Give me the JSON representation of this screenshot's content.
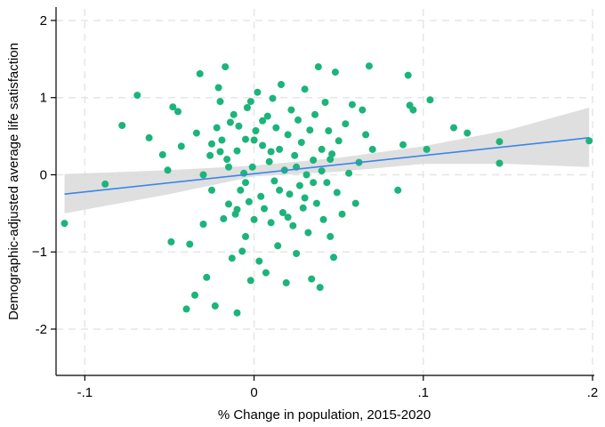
{
  "chart_data": {
    "type": "scatter",
    "xlabel": "% Change in population, 2015-2020",
    "ylabel": "Demographic-adjusted average life satisfaction",
    "xlim": [
      -0.117,
      0.2
    ],
    "ylim": [
      -2.6,
      2.15
    ],
    "xticks": [
      -0.1,
      0,
      0.1,
      0.2
    ],
    "xtick_labels": [
      "-.1",
      "0",
      ".1",
      ".2"
    ],
    "yticks": [
      -2,
      -1,
      0,
      1,
      2
    ],
    "ytick_labels": [
      "-2",
      "−1",
      "0",
      "1",
      "2"
    ],
    "grid": true,
    "colors": {
      "points": "#1bb47a",
      "fit_line": "#3a86e8",
      "ci_band": "#d9d9d9",
      "grid": "#e6e6e6"
    },
    "fit_line": {
      "x": [
        -0.112,
        0.198
      ],
      "y": [
        -0.25,
        0.48
      ]
    },
    "ci_band": {
      "x": [
        -0.112,
        -0.05,
        0.0,
        0.05,
        0.1,
        0.15,
        0.198
      ],
      "upper": [
        0.01,
        0.06,
        0.12,
        0.22,
        0.37,
        0.58,
        0.87
      ],
      "lower": [
        -0.5,
        -0.25,
        -0.02,
        0.04,
        0.14,
        0.14,
        0.1
      ]
    },
    "points": [
      [
        -0.112,
        -0.63
      ],
      [
        -0.088,
        -0.12
      ],
      [
        -0.069,
        1.03
      ],
      [
        -0.078,
        0.64
      ],
      [
        -0.062,
        0.48
      ],
      [
        -0.054,
        0.26
      ],
      [
        -0.051,
        0.06
      ],
      [
        -0.049,
        -0.87
      ],
      [
        -0.048,
        0.88
      ],
      [
        -0.045,
        0.82
      ],
      [
        -0.043,
        0.37
      ],
      [
        -0.04,
        -1.74
      ],
      [
        -0.038,
        -0.9
      ],
      [
        -0.035,
        -1.56
      ],
      [
        -0.034,
        0.54
      ],
      [
        -0.032,
        1.31
      ],
      [
        -0.03,
        -0.64
      ],
      [
        -0.028,
        -1.33
      ],
      [
        -0.026,
        0.25
      ],
      [
        -0.025,
        -0.2
      ],
      [
        -0.023,
        -1.7
      ],
      [
        -0.022,
        0.61
      ],
      [
        -0.021,
        1.13
      ],
      [
        -0.02,
        0.95
      ],
      [
        -0.019,
        0.45
      ],
      [
        -0.018,
        -0.57
      ],
      [
        -0.017,
        1.4
      ],
      [
        -0.016,
        0.2
      ],
      [
        -0.015,
        -0.38
      ],
      [
        -0.014,
        0.68
      ],
      [
        -0.013,
        -1.08
      ],
      [
        -0.012,
        0.78
      ],
      [
        -0.011,
        -0.51
      ],
      [
        -0.01,
        0.31
      ],
      [
        -0.01,
        -1.79
      ],
      [
        -0.009,
        0.63
      ],
      [
        -0.008,
        -0.2
      ],
      [
        -0.007,
        -0.99
      ],
      [
        -0.006,
        0.02
      ],
      [
        -0.005,
        0.46
      ],
      [
        -0.005,
        -0.8
      ],
      [
        -0.004,
        0.87
      ],
      [
        -0.003,
        -0.35
      ],
      [
        -0.002,
        0.95
      ],
      [
        -0.002,
        -1.37
      ],
      [
        -0.001,
        0.1
      ],
      [
        0.0,
        -0.58
      ],
      [
        0.001,
        0.57
      ],
      [
        0.002,
        1.07
      ],
      [
        0.003,
        -1.12
      ],
      [
        0.004,
        -0.28
      ],
      [
        0.005,
        0.38
      ],
      [
        0.006,
        -0.44
      ],
      [
        0.007,
        -1.27
      ],
      [
        0.008,
        0.76
      ],
      [
        0.009,
        0.17
      ],
      [
        0.01,
        -0.62
      ],
      [
        0.011,
        0.99
      ],
      [
        0.012,
        -0.08
      ],
      [
        0.013,
        0.61
      ],
      [
        0.014,
        -0.92
      ],
      [
        0.015,
        0.33
      ],
      [
        0.016,
        1.17
      ],
      [
        0.017,
        -0.49
      ],
      [
        0.018,
        0.06
      ],
      [
        0.019,
        -1.4
      ],
      [
        0.02,
        0.52
      ],
      [
        0.021,
        -0.25
      ],
      [
        0.022,
        0.84
      ],
      [
        0.023,
        -0.66
      ],
      [
        0.024,
        0.25
      ],
      [
        0.025,
        -1.02
      ],
      [
        0.026,
        0.71
      ],
      [
        0.027,
        -0.14
      ],
      [
        0.028,
        0.42
      ],
      [
        0.029,
        -0.43
      ],
      [
        0.03,
        1.11
      ],
      [
        0.031,
        0.0
      ],
      [
        0.032,
        -0.75
      ],
      [
        0.033,
        0.58
      ],
      [
        0.034,
        -1.35
      ],
      [
        0.035,
        0.19
      ],
      [
        0.036,
        0.78
      ],
      [
        0.037,
        -0.37
      ],
      [
        0.038,
        1.4
      ],
      [
        0.039,
        -1.46
      ],
      [
        0.04,
        0.33
      ],
      [
        0.041,
        -0.58
      ],
      [
        0.042,
        0.94
      ],
      [
        0.043,
        -0.1
      ],
      [
        0.044,
        0.57
      ],
      [
        0.045,
        -0.8
      ],
      [
        0.046,
        0.27
      ],
      [
        0.047,
        -1.07
      ],
      [
        0.048,
        1.33
      ],
      [
        0.049,
        -0.23
      ],
      [
        0.05,
        0.44
      ],
      [
        0.052,
        -0.51
      ],
      [
        0.054,
        0.66
      ],
      [
        0.056,
        0.02
      ],
      [
        0.058,
        0.91
      ],
      [
        0.06,
        -0.37
      ],
      [
        0.062,
        0.16
      ],
      [
        0.064,
        0.84
      ],
      [
        0.066,
        0.52
      ],
      [
        0.068,
        1.41
      ],
      [
        0.07,
        0.33
      ],
      [
        0.085,
        -0.2
      ],
      [
        0.088,
        0.39
      ],
      [
        0.091,
        1.29
      ],
      [
        0.092,
        0.9
      ],
      [
        0.094,
        0.84
      ],
      [
        0.102,
        0.33
      ],
      [
        0.104,
        0.97
      ],
      [
        0.118,
        0.61
      ],
      [
        0.126,
        0.54
      ],
      [
        0.145,
        0.43
      ],
      [
        0.145,
        0.15
      ],
      [
        0.198,
        0.44
      ],
      [
        -0.02,
        0.3
      ],
      [
        -0.015,
        0.1
      ],
      [
        -0.005,
        -0.1
      ],
      [
        0.005,
        0.7
      ],
      [
        0.015,
        -0.2
      ],
      [
        0.025,
        0.1
      ],
      [
        0.035,
        -0.1
      ],
      [
        0.045,
        0.2
      ],
      [
        -0.03,
        0.0
      ],
      [
        -0.025,
        0.4
      ],
      [
        0.01,
        0.3
      ],
      [
        0.02,
        -0.55
      ],
      [
        0.03,
        -0.3
      ],
      [
        0.04,
        0.05
      ],
      [
        -0.01,
        -0.45
      ],
      [
        0.0,
        0.45
      ]
    ]
  }
}
